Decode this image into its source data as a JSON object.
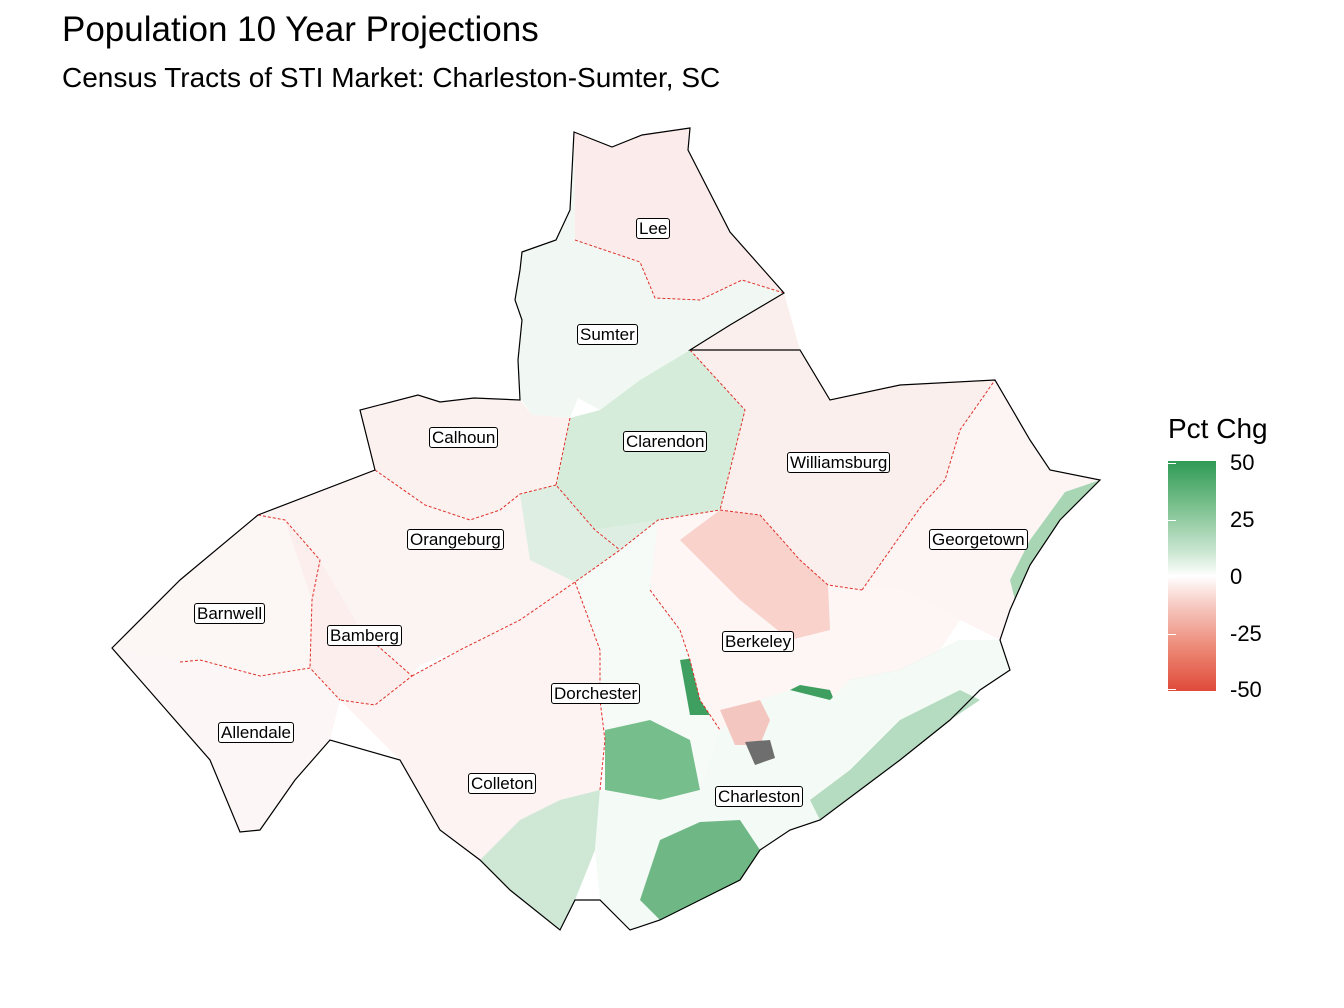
{
  "title": "Population 10 Year Projections",
  "subtitle": "Census Tracts of STI Market: Charleston-Sumter, SC",
  "legend": {
    "title": "Pct Chg",
    "ticks": [
      "50",
      "25",
      "0",
      "-25",
      "-50"
    ],
    "colors": {
      "high": "#2e9a55",
      "mid": "#ffffff",
      "low": "#e04a3a",
      "missing": "#6e6e6e"
    }
  },
  "counties": [
    {
      "name": "Lee",
      "label": "Lee"
    },
    {
      "name": "Sumter",
      "label": "Sumter"
    },
    {
      "name": "Calhoun",
      "label": "Calhoun"
    },
    {
      "name": "Clarendon",
      "label": "Clarendon"
    },
    {
      "name": "Williamsburg",
      "label": "Williamsburg"
    },
    {
      "name": "Orangeburg",
      "label": "Orangeburg"
    },
    {
      "name": "Georgetown",
      "label": "Georgetown"
    },
    {
      "name": "Barnwell",
      "label": "Barnwell"
    },
    {
      "name": "Bamberg",
      "label": "Bamberg"
    },
    {
      "name": "Berkeley",
      "label": "Berkeley"
    },
    {
      "name": "Dorchester",
      "label": "Dorchester"
    },
    {
      "name": "Allendale",
      "label": "Allendale"
    },
    {
      "name": "Colleton",
      "label": "Colleton"
    },
    {
      "name": "Charleston",
      "label": "Charleston"
    }
  ]
}
